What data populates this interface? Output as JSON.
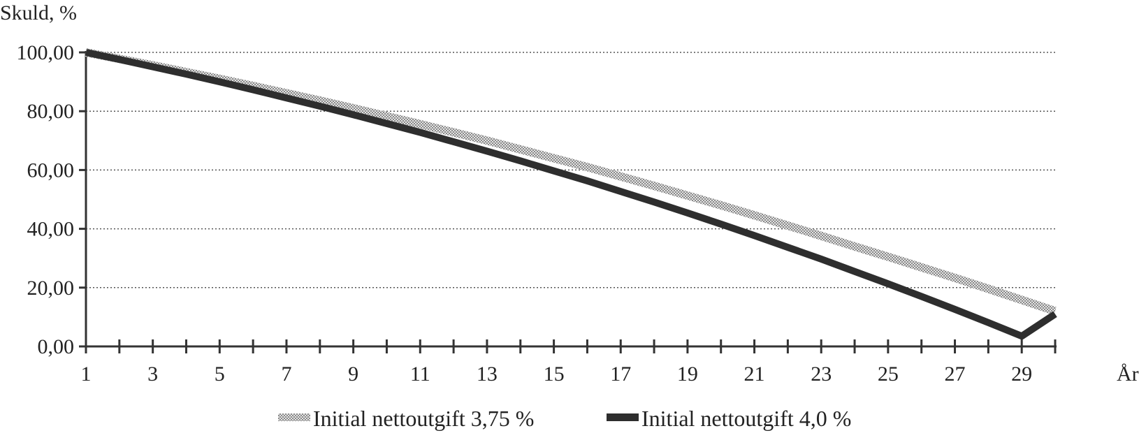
{
  "chart_data": {
    "type": "line",
    "title": "",
    "ylabel": "Skuld, %",
    "xlabel": "År",
    "ylim": [
      0,
      100
    ],
    "xlim": [
      1,
      30
    ],
    "grid": true,
    "legend_position": "bottom",
    "y_ticks": [
      "0,00",
      "20,00",
      "40,00",
      "60,00",
      "80,00",
      "100,00"
    ],
    "y_tick_values": [
      0,
      20,
      40,
      60,
      80,
      100
    ],
    "x_tick_labels": [
      "1",
      "3",
      "5",
      "7",
      "9",
      "11",
      "13",
      "15",
      "17",
      "19",
      "21",
      "23",
      "25",
      "27",
      "29"
    ],
    "x": [
      1,
      2,
      3,
      4,
      5,
      6,
      7,
      8,
      9,
      10,
      11,
      12,
      13,
      14,
      15,
      16,
      17,
      18,
      19,
      20,
      21,
      22,
      23,
      24,
      25,
      26,
      27,
      28,
      29,
      30
    ],
    "series": [
      {
        "name": "Initial nettoutgift 3,75 %",
        "color": "#b0b0b0",
        "style": "stippled",
        "values": [
          100.0,
          97.8,
          95.6,
          93.3,
          91.0,
          88.6,
          86.1,
          83.6,
          81.0,
          78.3,
          75.6,
          72.8,
          70.0,
          67.0,
          64.0,
          61.0,
          57.8,
          54.6,
          51.3,
          48.0,
          44.6,
          41.1,
          37.6,
          34.0,
          30.5,
          26.9,
          23.3,
          19.6,
          15.8,
          12.0
        ]
      },
      {
        "name": "Initial nettoutgift 4,0 %",
        "color": "#2e2e2e",
        "style": "solid",
        "values": [
          100.0,
          97.6,
          95.1,
          92.6,
          90.0,
          87.3,
          84.5,
          81.7,
          78.8,
          75.8,
          72.8,
          69.6,
          66.4,
          63.1,
          59.7,
          56.3,
          52.7,
          49.1,
          45.4,
          41.6,
          37.7,
          33.7,
          29.7,
          25.5,
          21.3,
          17.0,
          12.6,
          8.1,
          3.5,
          11.0
        ]
      }
    ]
  }
}
